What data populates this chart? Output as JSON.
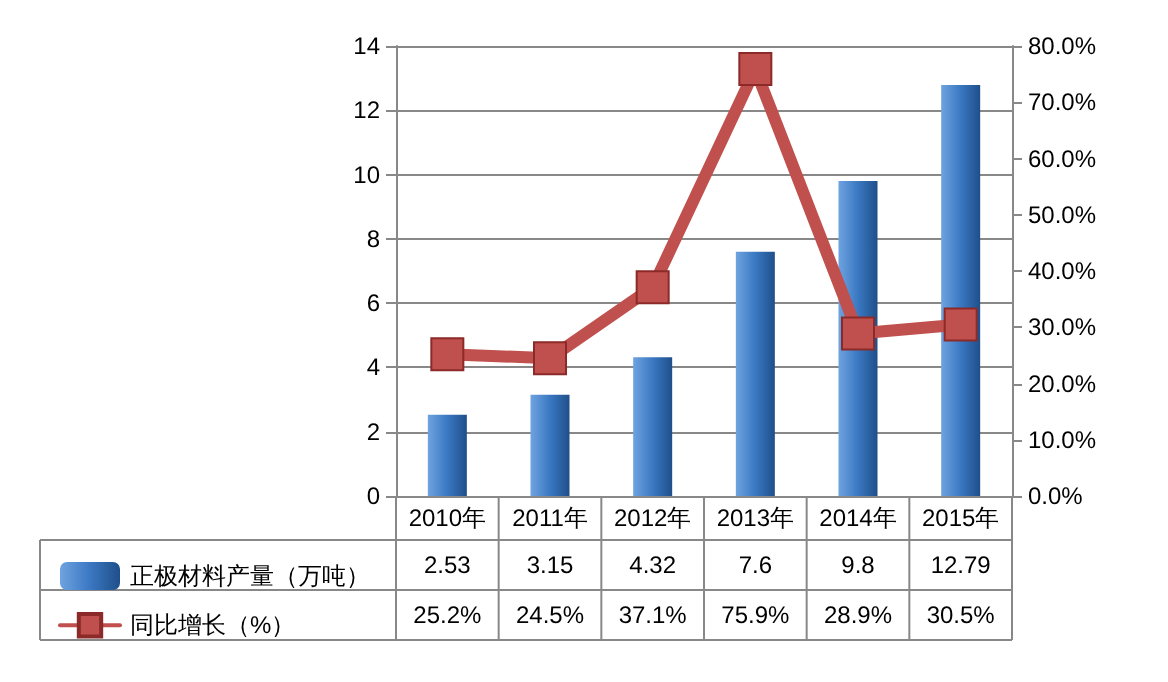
{
  "chart_data": {
    "type": "bar",
    "categories": [
      "2010年",
      "2011年",
      "2012年",
      "2013年",
      "2014年",
      "2015年"
    ],
    "series": [
      {
        "name": "正极材料产量（万吨）",
        "color": "#3a78c2",
        "values": [
          2.53,
          3.15,
          4.32,
          7.6,
          9.8,
          12.79
        ],
        "value_labels": [
          "2.53",
          "3.15",
          "4.32",
          "7.6",
          "9.8",
          "12.79"
        ]
      },
      {
        "name": "同比增长（%）",
        "type": "line",
        "axis": "y2",
        "color": "#c0504d",
        "values": [
          25.2,
          24.5,
          37.1,
          75.9,
          28.9,
          30.5
        ],
        "value_labels": [
          "25.2%",
          "24.5%",
          "37.1%",
          "75.9%",
          "28.9%",
          "30.5%"
        ]
      }
    ],
    "ylim": [
      0,
      14
    ],
    "yticks": [
      0,
      2,
      4,
      6,
      8,
      10,
      12,
      14
    ],
    "y2lim": [
      0,
      80
    ],
    "y2ticks": [
      {
        "value": 0,
        "label": "0.0%"
      },
      {
        "value": 10,
        "label": "10.0%"
      },
      {
        "value": 20,
        "label": "20.0%"
      },
      {
        "value": 30,
        "label": "30.0%"
      },
      {
        "value": 40,
        "label": "40.0%"
      },
      {
        "value": 50,
        "label": "50.0%"
      },
      {
        "value": 60,
        "label": "60.0%"
      },
      {
        "value": 70,
        "label": "70.0%"
      },
      {
        "value": 80,
        "label": "80.0%"
      }
    ],
    "grid": "y",
    "legend": "bottom",
    "marker": "square",
    "line_style": "solid"
  }
}
